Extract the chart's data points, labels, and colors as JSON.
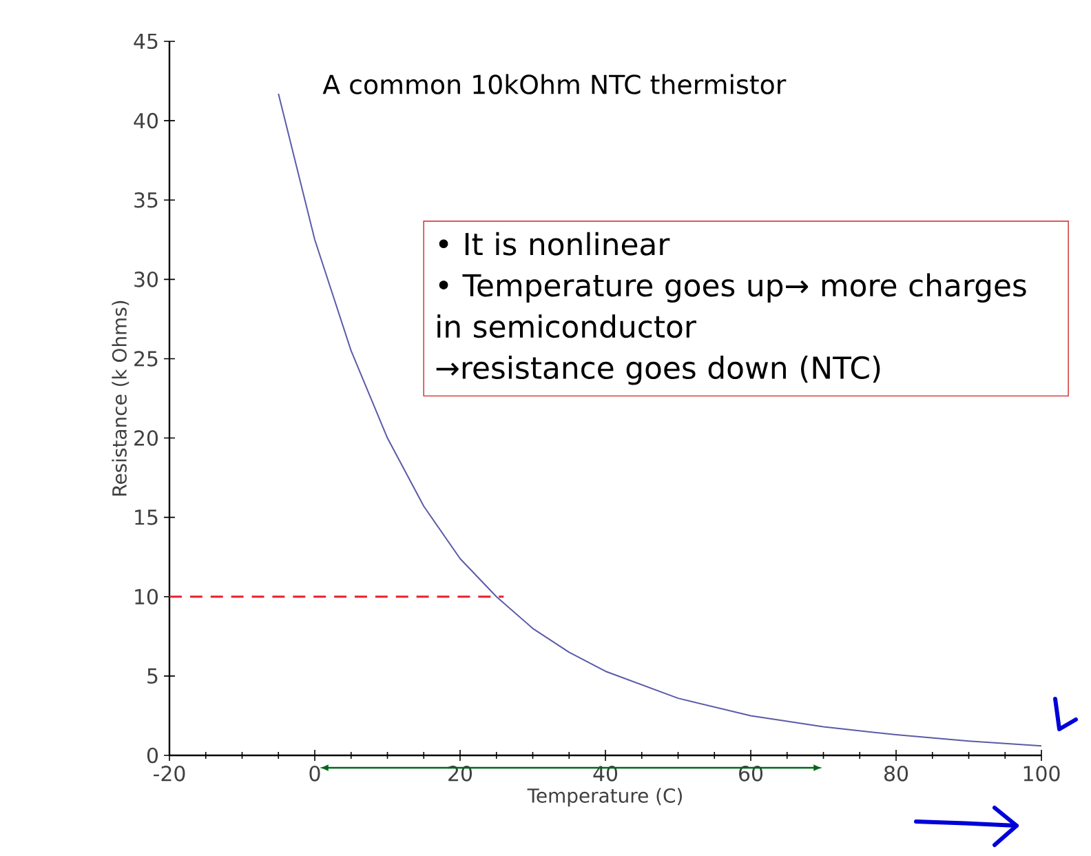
{
  "chart_data": {
    "type": "line",
    "xlabel": "Temperature (C)",
    "ylabel": "Resistance (k Ohms)",
    "annotations": [
      "A common 10kOhm NTC thermistor",
      "• It is nonlinear",
      "• Temperature goes up→ more charges in semiconductor",
      "→resistance goes down (NTC)"
    ],
    "series": [
      {
        "color": "#5a5aa8",
        "x": [
          -5,
          0,
          5,
          10,
          15,
          20,
          25,
          30,
          35,
          40,
          50,
          60,
          70,
          80,
          90,
          100
        ],
        "values": [
          41.7,
          32.5,
          25.5,
          20,
          15.7,
          12.4,
          10,
          8,
          6.5,
          5.3,
          3.6,
          2.5,
          1.8,
          1.3,
          0.9,
          0.6
        ]
      }
    ],
    "xlim": [
      -20,
      100
    ],
    "ylim": [
      0,
      45
    ],
    "xticks": [
      -20,
      0,
      20,
      40,
      60,
      80,
      100
    ],
    "yticks": [
      0,
      5,
      10,
      15,
      20,
      25,
      30,
      35,
      40,
      45
    ],
    "ref_lines": [
      {
        "axis": "y",
        "value": 10,
        "color": "#e8202a",
        "line_style": "dashed"
      }
    ],
    "grid": false,
    "marker": "none",
    "line_style": "solid"
  }
}
